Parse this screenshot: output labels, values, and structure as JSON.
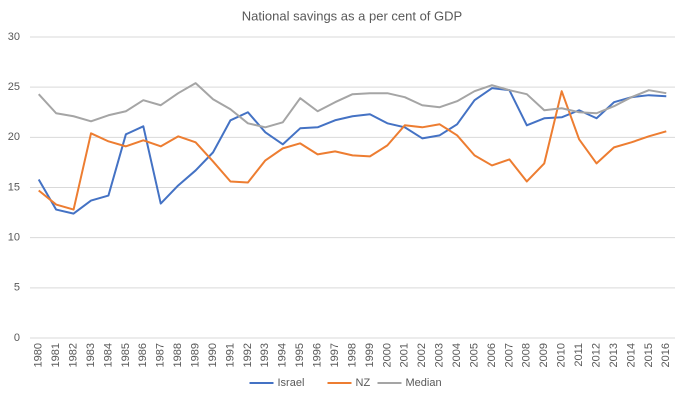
{
  "chart_data": {
    "type": "line",
    "title": "National savings as a per cent of GDP",
    "categories": [
      "1980",
      "1981",
      "1982",
      "1983",
      "1984",
      "1985",
      "1986",
      "1987",
      "1988",
      "1989",
      "1990",
      "1991",
      "1992",
      "1993",
      "1994",
      "1995",
      "1996",
      "1997",
      "1998",
      "1999",
      "2000",
      "2001",
      "2002",
      "2003",
      "2004",
      "2005",
      "2006",
      "2007",
      "2008",
      "2009",
      "2010",
      "2011",
      "2012",
      "2013",
      "2014",
      "2015",
      "2016"
    ],
    "series": [
      {
        "name": "Israel",
        "color": "#4472c4",
        "values": [
          15.8,
          12.8,
          12.4,
          13.7,
          14.2,
          20.3,
          21.1,
          13.4,
          15.2,
          16.7,
          18.5,
          21.7,
          22.5,
          20.5,
          19.3,
          20.9,
          21.0,
          21.7,
          22.1,
          22.3,
          21.4,
          21.0,
          19.9,
          20.2,
          21.3,
          23.7,
          24.9,
          24.7,
          21.2,
          21.9,
          22.0,
          22.7,
          21.9,
          23.5,
          24.0,
          24.2,
          24.1
        ]
      },
      {
        "name": "NZ",
        "color": "#ed7d31",
        "values": [
          14.7,
          13.3,
          12.8,
          20.4,
          19.6,
          19.1,
          19.7,
          19.1,
          20.1,
          19.5,
          17.6,
          15.6,
          15.5,
          17.7,
          18.9,
          19.4,
          18.3,
          18.6,
          18.2,
          18.1,
          19.2,
          21.2,
          21.0,
          21.3,
          20.2,
          18.2,
          17.2,
          17.8,
          15.6,
          17.4,
          24.6,
          19.8,
          17.4,
          19.0,
          19.5,
          20.1,
          20.6
        ]
      },
      {
        "name": "Median",
        "color": "#a5a5a5",
        "values": [
          24.3,
          22.4,
          22.1,
          21.6,
          22.2,
          22.6,
          23.7,
          23.2,
          24.4,
          25.4,
          23.8,
          22.8,
          21.4,
          21.0,
          21.5,
          23.9,
          22.6,
          23.5,
          24.3,
          24.4,
          24.4,
          24.0,
          23.2,
          23.0,
          23.6,
          24.6,
          25.2,
          24.7,
          24.3,
          22.7,
          22.9,
          22.5,
          22.4,
          23.1,
          24.0,
          24.7,
          24.4
        ]
      }
    ],
    "ylim": [
      0,
      30
    ],
    "yticks": [
      0,
      5,
      10,
      15,
      20,
      25,
      30
    ],
    "grid": true,
    "legend": "bottom"
  }
}
